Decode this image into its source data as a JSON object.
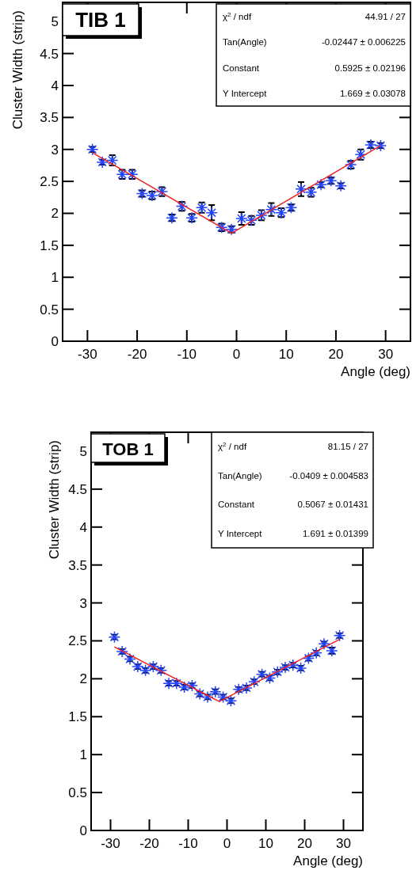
{
  "chart_data": [
    {
      "type": "scatter",
      "title": "TIB 1",
      "xlabel": "Angle (deg)",
      "ylabel": "Cluster Width (strip)",
      "xlim": [
        -35,
        35
      ],
      "xticks": [
        -30,
        -20,
        -10,
        0,
        10,
        20,
        30
      ],
      "ylim": [
        0,
        5.3
      ],
      "yticks": [
        0,
        0.5,
        1,
        1.5,
        2,
        2.5,
        3,
        3.5,
        4,
        4.5,
        5
      ],
      "grid": false,
      "annotations": [
        "χ$^{2}$ / ndf",
        "44.91 / 27",
        "Tan(Angle)",
        "-0.02447 ± 0.006225",
        "Constant",
        "0.5925 ± 0.02196",
        "Y Intercept",
        "1.669 ± 0.03078"
      ],
      "series": [
        {
          "marker": "cross",
          "color": "#2244ff",
          "x": [
            -29,
            -27,
            -25,
            -23,
            -21,
            -19,
            -17,
            -15,
            -13,
            -11,
            -9,
            -7,
            -5,
            -3,
            -1,
            1,
            3,
            5,
            7,
            9,
            11,
            13,
            15,
            17,
            19,
            21,
            23,
            25,
            27,
            29
          ],
          "values": [
            3.0,
            2.8,
            2.83,
            2.61,
            2.61,
            2.31,
            2.28,
            2.34,
            1.93,
            2.11,
            1.93,
            2.09,
            2.01,
            1.78,
            1.75,
            1.92,
            1.89,
            1.97,
            2.06,
            2.01,
            2.09,
            2.38,
            2.33,
            2.45,
            2.51,
            2.43,
            2.76,
            2.92,
            3.07,
            3.06
          ],
          "errors": [
            0.04,
            0.04,
            0.08,
            0.07,
            0.07,
            0.05,
            0.06,
            0.07,
            0.05,
            0.07,
            0.06,
            0.08,
            0.12,
            0.06,
            0.05,
            0.1,
            0.07,
            0.08,
            0.1,
            0.07,
            0.05,
            0.11,
            0.07,
            0.04,
            0.05,
            0.04,
            0.06,
            0.08,
            0.05,
            0.04
          ]
        },
        {
          "type": "line",
          "color": "#ee2222",
          "x": [
            -29,
            -1,
            29
          ],
          "values": [
            2.95,
            1.69,
            3.06
          ]
        }
      ]
    },
    {
      "type": "scatter",
      "title": "TOB 1",
      "xlabel": "Angle (deg)",
      "ylabel": "Cluster Width (strip)",
      "xlim": [
        -35,
        35
      ],
      "xticks": [
        -30,
        -20,
        -10,
        0,
        10,
        20,
        30
      ],
      "ylim": [
        0,
        5.25
      ],
      "yticks": [
        0,
        0.5,
        1,
        1.5,
        2,
        2.5,
        3,
        3.5,
        4,
        4.5,
        5
      ],
      "grid": false,
      "annotations": [
        "χ$^{2}$ / ndf",
        "81.15 / 27",
        "Tan(Angle)",
        "-0.0409 ± 0.004583",
        "Constant",
        "0.5067 ± 0.01431",
        "Y Intercept",
        "1.691 ± 0.01399"
      ],
      "series": [
        {
          "marker": "cross",
          "color": "#2244ff",
          "x": [
            -29,
            -27,
            -25,
            -23,
            -21,
            -19,
            -17,
            -15,
            -13,
            -11,
            -9,
            -7,
            -5,
            -3,
            -1,
            1,
            3,
            5,
            7,
            9,
            11,
            13,
            15,
            17,
            19,
            21,
            23,
            25,
            27,
            29
          ],
          "values": [
            2.55,
            2.36,
            2.26,
            2.16,
            2.11,
            2.16,
            2.11,
            1.94,
            1.94,
            1.89,
            1.91,
            1.8,
            1.76,
            1.83,
            1.76,
            1.71,
            1.86,
            1.88,
            1.96,
            2.06,
            2.01,
            2.09,
            2.15,
            2.18,
            2.14,
            2.27,
            2.34,
            2.46,
            2.37,
            2.57
          ],
          "errors": [
            0.03,
            0.03,
            0.03,
            0.03,
            0.03,
            0.03,
            0.03,
            0.03,
            0.03,
            0.03,
            0.03,
            0.03,
            0.03,
            0.03,
            0.03,
            0.03,
            0.03,
            0.03,
            0.03,
            0.03,
            0.03,
            0.03,
            0.03,
            0.03,
            0.03,
            0.03,
            0.03,
            0.03,
            0.04,
            0.03
          ]
        },
        {
          "type": "line",
          "color": "#ee2222",
          "x": [
            -29,
            -2,
            29
          ],
          "values": [
            2.42,
            1.7,
            2.52
          ]
        }
      ]
    }
  ]
}
